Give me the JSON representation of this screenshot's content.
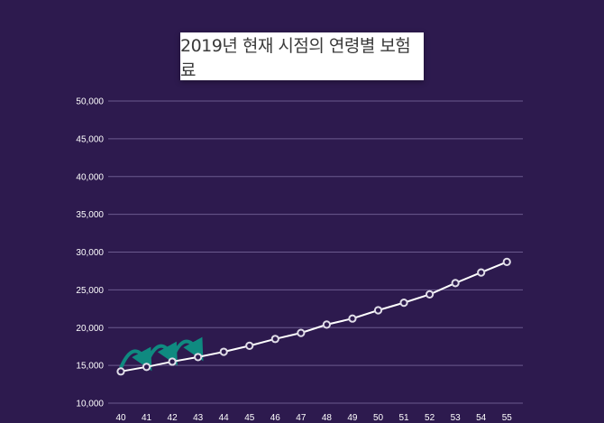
{
  "chart_data": {
    "type": "line",
    "title": "2019년 현재 시점의 연령별 보험료",
    "x": [
      40,
      41,
      42,
      43,
      44,
      45,
      46,
      47,
      48,
      49,
      50,
      51,
      52,
      53,
      54,
      55
    ],
    "series": [
      {
        "values": [
          14200,
          14800,
          15500,
          16100,
          16800,
          17600,
          18500,
          19300,
          20400,
          21200,
          22300,
          23300,
          24400,
          25900,
          27300,
          28700
        ]
      }
    ],
    "y_ticks": [
      "10,000",
      "15,000",
      "20,000",
      "25,000",
      "30,000",
      "35,000",
      "40,000",
      "45,000",
      "50,000"
    ],
    "ylim": [
      10000,
      50000
    ],
    "grid": true,
    "colors": {
      "background": "#2d1a4e",
      "line": "#ffffff",
      "grid": "#6b5a8e",
      "arrow": "#0f8a80"
    }
  }
}
